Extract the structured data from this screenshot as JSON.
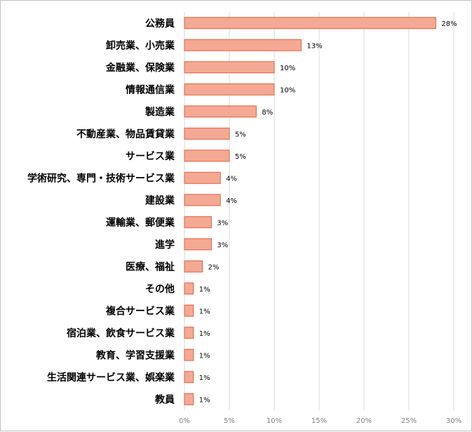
{
  "chart_data": {
    "type": "bar",
    "orientation": "horizontal",
    "categories": [
      "公務員",
      "卸売業、小売業",
      "金融業、保険業",
      "情報通信業",
      "製造業",
      "不動産業、物品賃貸業",
      "サービス業",
      "学術研究、専門・技術サービス業",
      "建設業",
      "運輸業、郵便業",
      "進学",
      "医療、福祉",
      "その他",
      "複合サービス業",
      "宿泊業、飲食サービス業",
      "教育、学習支援業",
      "生活関連サービス業、娯楽業",
      "教員"
    ],
    "values": [
      28,
      13,
      10,
      10,
      8,
      5,
      5,
      4,
      4,
      3,
      3,
      2,
      1,
      1,
      1,
      1,
      1,
      1
    ],
    "data_labels": [
      "28%",
      "13%",
      "10%",
      "10%",
      "8%",
      "5%",
      "5%",
      "4%",
      "4%",
      "3%",
      "3%",
      "2%",
      "1%",
      "1%",
      "1%",
      "1%",
      "1%",
      "1%"
    ],
    "x_ticks": [
      0,
      5,
      10,
      15,
      20,
      25,
      30
    ],
    "x_tick_labels": [
      "0%",
      "5%",
      "10%",
      "15%",
      "20%",
      "25%",
      "30%"
    ],
    "xlim": [
      0,
      30
    ],
    "grid": true,
    "legend": "none",
    "colors": {
      "bar_fill": "#f4a994",
      "bar_stroke": "#e0603a",
      "grid": "#d9d9d9",
      "tick_text": "#7f7f7f"
    }
  }
}
